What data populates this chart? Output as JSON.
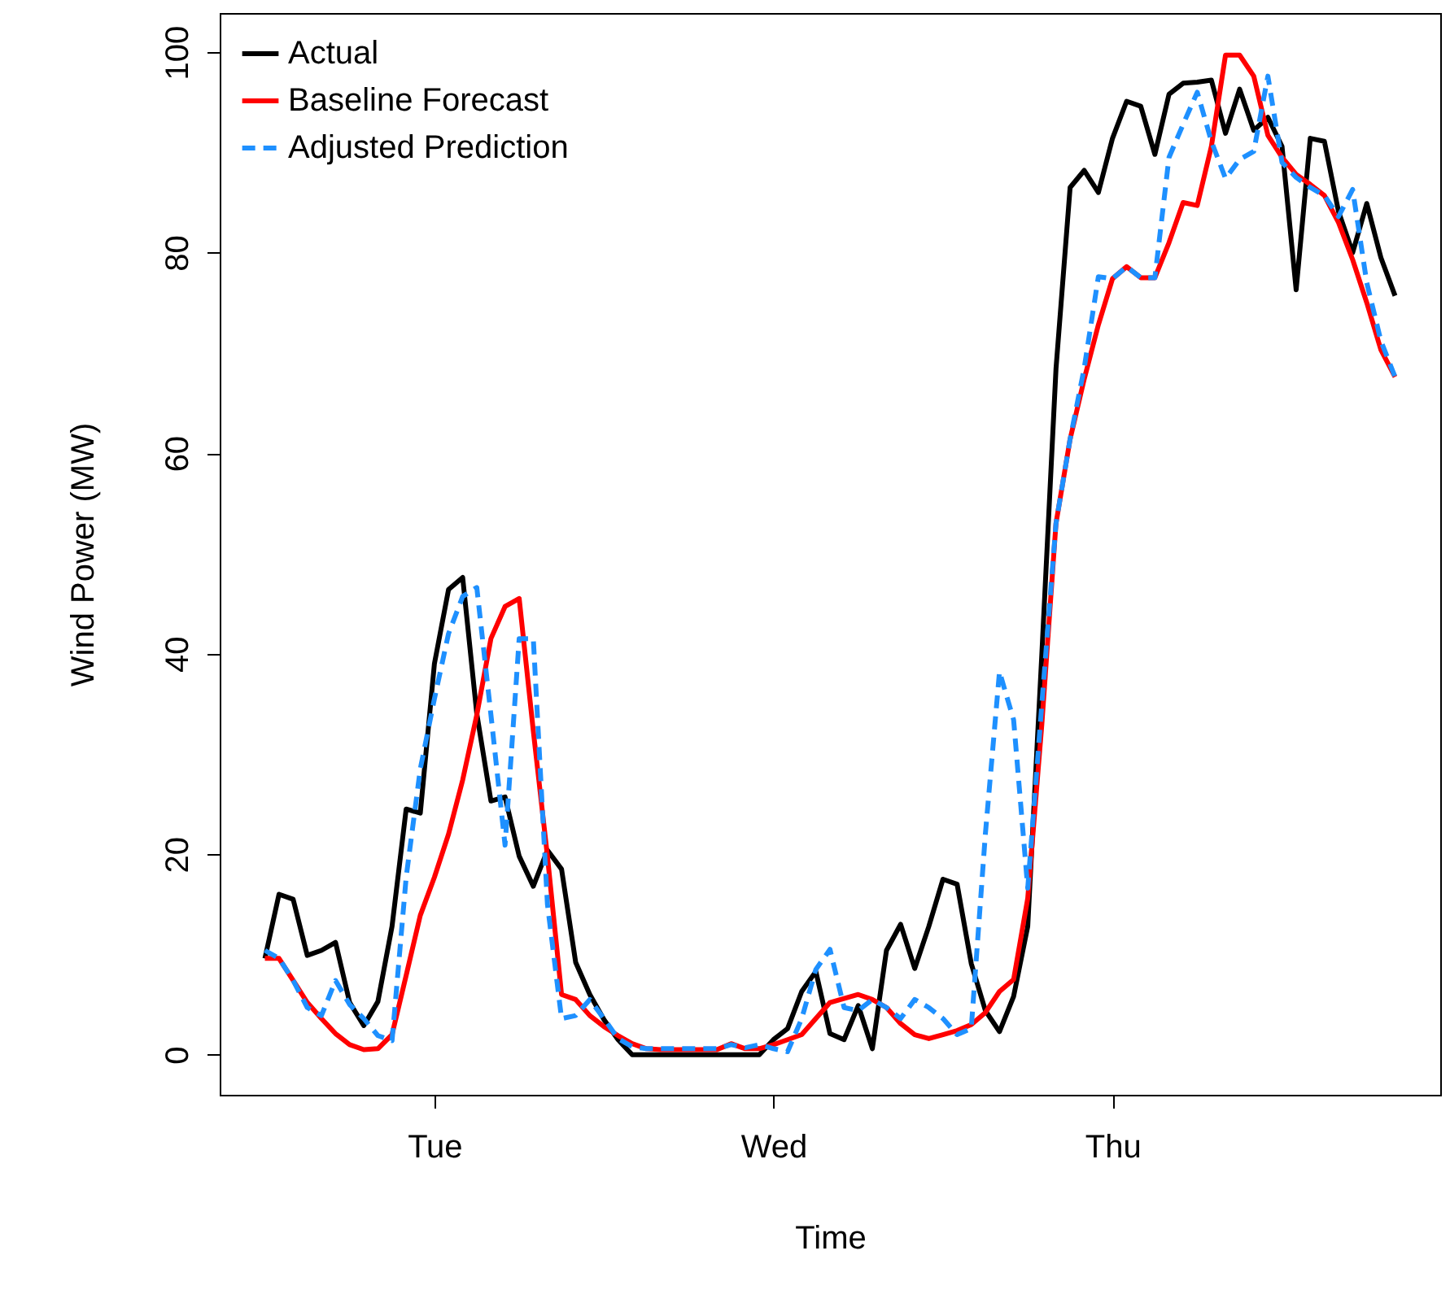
{
  "chart_data": {
    "type": "line",
    "xlabel": "Time",
    "ylabel": "Wind Power (MW)",
    "categories": [
      null,
      null,
      null,
      null,
      null,
      null,
      null,
      null,
      null,
      null,
      null,
      null,
      "Tue",
      null,
      null,
      null,
      null,
      null,
      null,
      null,
      null,
      null,
      null,
      null,
      null,
      null,
      null,
      null,
      null,
      null,
      null,
      null,
      null,
      null,
      null,
      null,
      "Wed",
      null,
      null,
      null,
      null,
      null,
      null,
      null,
      null,
      null,
      null,
      null,
      null,
      null,
      null,
      null,
      null,
      null,
      null,
      null,
      null,
      null,
      null,
      null,
      "Thu",
      null,
      null,
      null,
      null,
      null,
      null,
      null,
      null,
      null,
      null,
      null,
      null,
      null,
      null,
      null,
      null,
      null,
      null,
      null,
      null
    ],
    "ylim": [
      -4,
      103.9
    ],
    "yticks": [
      0,
      20,
      40,
      60,
      80,
      100
    ],
    "grid": false,
    "legend": "top left",
    "marker": "none",
    "series": [
      {
        "name": "Actual",
        "color": "#000000",
        "line_style": "solid",
        "values": [
          9.6,
          16,
          15.5,
          9.9,
          10.4,
          11.2,
          5.2,
          2.9,
          5.3,
          12.8,
          24.5,
          24.1,
          39,
          46.4,
          47.6,
          34,
          25.3,
          25.7,
          19.8,
          16.8,
          20.4,
          18.5,
          9.2,
          6,
          3.5,
          1.5,
          0,
          0,
          0,
          0,
          0,
          0,
          0,
          0,
          0,
          0,
          1.5,
          2.6,
          6.3,
          8.3,
          2.1,
          1.5,
          4.9,
          0.6,
          10.4,
          13,
          8.6,
          12.8,
          17.5,
          17,
          9.1,
          4.4,
          2.3,
          5.8,
          12.8,
          40,
          68.4,
          86.5,
          88.2,
          86,
          91.4,
          95.1,
          94.6,
          89.8,
          95.8,
          96.9,
          97,
          97.2,
          91.9,
          96.3,
          92.2,
          93.5,
          90.6,
          76.3,
          91.4,
          91.1,
          84.1,
          80,
          84.9,
          79.5,
          75.7
        ]
      },
      {
        "name": "Baseline Forecast",
        "color": "#ff0000",
        "line_style": "solid",
        "values": [
          9.6,
          9.6,
          7.4,
          5.2,
          3.6,
          2.1,
          1,
          0.5,
          0.6,
          2,
          7.9,
          13.9,
          17.7,
          22,
          27.4,
          33.9,
          41.5,
          44.7,
          45.5,
          32.3,
          19.8,
          6,
          5.5,
          3.9,
          2.8,
          1.9,
          1.1,
          0.6,
          0.5,
          0.5,
          0.5,
          0.5,
          0.5,
          1.1,
          0.6,
          0.6,
          1,
          1.5,
          2,
          3.6,
          5.2,
          5.6,
          6,
          5.5,
          4.7,
          3.1,
          2,
          1.6,
          2,
          2.4,
          3,
          4.2,
          6.3,
          7.5,
          15.6,
          33,
          53,
          61.4,
          67.4,
          72.8,
          77.4,
          78.6,
          77.5,
          77.5,
          81,
          85,
          84.7,
          90.6,
          99.7,
          99.7,
          97.6,
          91.7,
          89.5,
          87.8,
          86.8,
          85.7,
          83,
          79.3,
          75,
          70.3,
          67.6
        ]
      },
      {
        "name": "Adjusted Prediction",
        "color": "#1e90ff",
        "line_style": "dashed",
        "values": [
          10.4,
          9.6,
          7.4,
          4.7,
          3.9,
          7.4,
          5,
          3.6,
          1.9,
          1.4,
          17.7,
          28.5,
          35.5,
          42,
          45.7,
          46.6,
          33.9,
          20.9,
          41.5,
          41.5,
          15,
          3.6,
          3.9,
          5.5,
          3.6,
          1.6,
          0.8,
          0.6,
          0.6,
          0.6,
          0.6,
          0.6,
          0.6,
          1,
          0.7,
          1,
          0.6,
          0.3,
          3.6,
          8.5,
          10.5,
          4.7,
          4.4,
          5.5,
          4.7,
          3.6,
          5.5,
          4.7,
          3.6,
          2,
          2.6,
          22,
          38.2,
          33.4,
          16.6,
          35,
          53,
          61.4,
          68.5,
          77.6,
          77.4,
          78.6,
          77.5,
          77.5,
          89.5,
          92.8,
          96,
          91.1,
          87.4,
          89.3,
          90.1,
          97.6,
          89,
          87.5,
          86.5,
          85.7,
          83.6,
          86.3,
          77,
          71.2,
          67.6
        ]
      }
    ]
  }
}
